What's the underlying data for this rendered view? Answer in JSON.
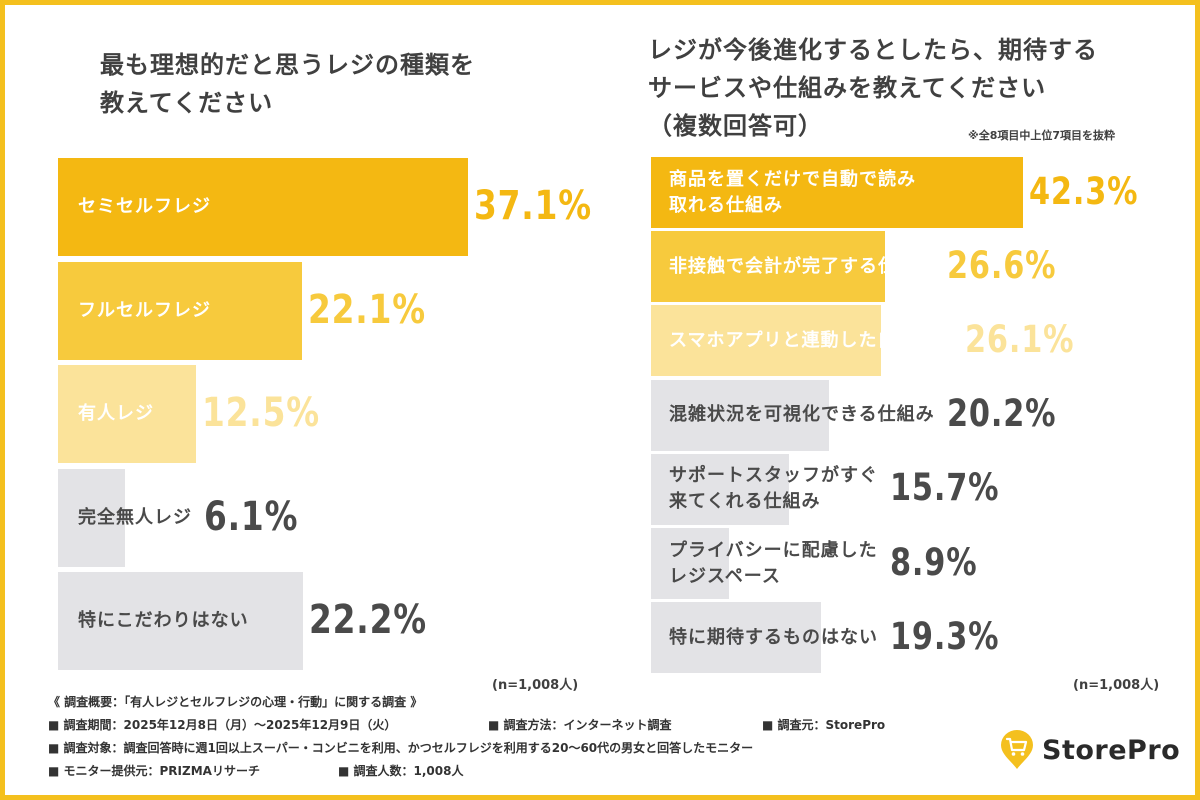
{
  "left": {
    "title_lines": [
      "最も理想的だと思うレジの種類を",
      "教えてください"
    ],
    "n_label": "(n=1,008人)"
  },
  "right": {
    "title_lines": [
      "レジが今後進化するとしたら、期待する",
      "サービスや仕組みを教えてください",
      "（複数回答可）"
    ],
    "note": "※全8項目中上位7項目を抜粋",
    "n_label": "(n=1,008人)"
  },
  "footer": {
    "summary": "《 調査概要：「有人レジとセルフレジの心理・行動」に関する調査 》",
    "period": "■ 調査期間：2025年12月8日（月）〜2025年12月9日（火）",
    "method": "■ 調査方法：インターネット調査",
    "source": "■ 調査元：StorePro",
    "target": "■ 調査対象：調査回答時に週1回以上スーパー・コンビニを利用、かつセルフレジを利用する20〜60代の男女と回答したモニター",
    "provider": "■ モニター提供元：PRIZMAリサーチ",
    "count": "■ 調査人数：1,008人"
  },
  "logo": {
    "text": "StorePro",
    "icon": "shopping-cart-pin-icon",
    "icon_color": "#f4c01e"
  },
  "colors": {
    "frame": "#f4c01e",
    "gray_bar": "#e3e3e6",
    "dark_text": "#4a4a4a"
  },
  "chart_data": [
    {
      "type": "bar",
      "orientation": "horizontal",
      "title": "最も理想的だと思うレジの種類を教えてください",
      "categories": [
        "セミセルフレジ",
        "フルセルフレジ",
        "有人レジ",
        "完全無人レジ",
        "特にこだわりはない"
      ],
      "values": [
        37.1,
        22.1,
        12.5,
        6.1,
        22.2
      ],
      "value_labels": [
        "37.1%",
        "22.1%",
        "12.5%",
        "6.1%",
        "22.2%"
      ],
      "bar_colors": [
        "#f4b812",
        "#f7ca3d",
        "#fbe39a",
        "#e3e3e6",
        "#e3e3e6"
      ],
      "label_colors": [
        "#ffffff",
        "#ffffff",
        "#ffffff",
        "#4a4a4a",
        "#4a4a4a"
      ],
      "value_colors": [
        "#f4b812",
        "#f7ca3d",
        "#fbe39a",
        "#4a4a4a",
        "#4a4a4a"
      ],
      "unit": "%",
      "n": "n=1,008人"
    },
    {
      "type": "bar",
      "orientation": "horizontal",
      "title": "レジが今後進化するとしたら、期待するサービスや仕組みを教えてください（複数回答可）",
      "categories": [
        [
          "商品を置くだけで自動で読み",
          "取れる仕組み"
        ],
        [
          "非接触で会計が完了する仕組み"
        ],
        [
          "スマホアプリと連動した自動決済"
        ],
        [
          "混雑状況を可視化できる仕組み"
        ],
        [
          "サポートスタッフがすぐ",
          "来てくれる仕組み"
        ],
        [
          "プライバシーに配慮した",
          "レジスペース"
        ],
        [
          "特に期待するものはない"
        ]
      ],
      "values": [
        42.3,
        26.6,
        26.1,
        20.2,
        15.7,
        8.9,
        19.3
      ],
      "value_labels": [
        "42.3%",
        "26.6%",
        "26.1%",
        "20.2%",
        "15.7%",
        "8.9%",
        "19.3%"
      ],
      "bar_colors": [
        "#f4b812",
        "#f7ca3d",
        "#fbe39a",
        "#e3e3e6",
        "#e3e3e6",
        "#e3e3e6",
        "#e3e3e6"
      ],
      "label_colors": [
        "#ffffff",
        "#ffffff",
        "#ffffff",
        "#4a4a4a",
        "#4a4a4a",
        "#4a4a4a",
        "#4a4a4a"
      ],
      "value_colors": [
        "#f4b812",
        "#f7ca3d",
        "#fbe39a",
        "#4a4a4a",
        "#4a4a4a",
        "#4a4a4a",
        "#4a4a4a"
      ],
      "unit": "%",
      "n": "n=1,008人"
    }
  ]
}
